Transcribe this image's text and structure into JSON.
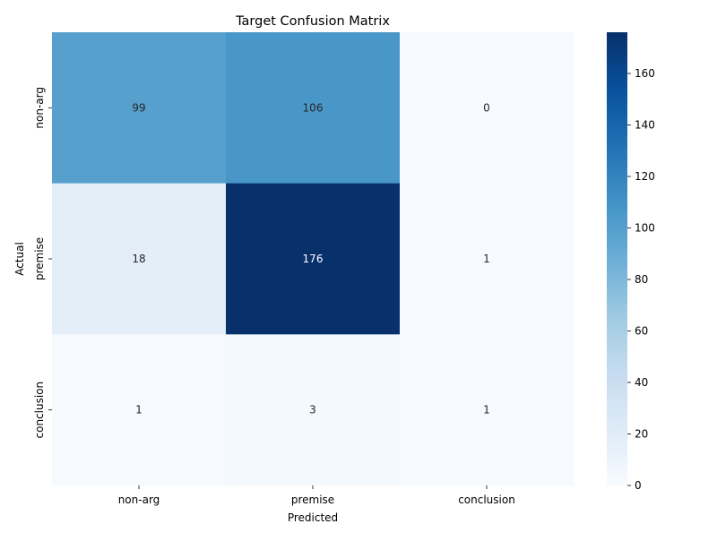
{
  "chart_data": {
    "type": "heatmap",
    "title": "Target Confusion Matrix",
    "xlabel": "Predicted",
    "ylabel": "Actual",
    "x_categories": [
      "non-arg",
      "premise",
      "conclusion"
    ],
    "y_categories": [
      "non-arg",
      "premise",
      "conclusion"
    ],
    "values": [
      [
        99,
        106,
        0
      ],
      [
        18,
        176,
        1
      ],
      [
        1,
        3,
        1
      ]
    ],
    "colormap": "Blues",
    "colorbar": {
      "min": 0,
      "max": 176,
      "ticks": [
        0,
        20,
        40,
        60,
        80,
        100,
        120,
        140,
        160
      ]
    },
    "grid": false
  }
}
